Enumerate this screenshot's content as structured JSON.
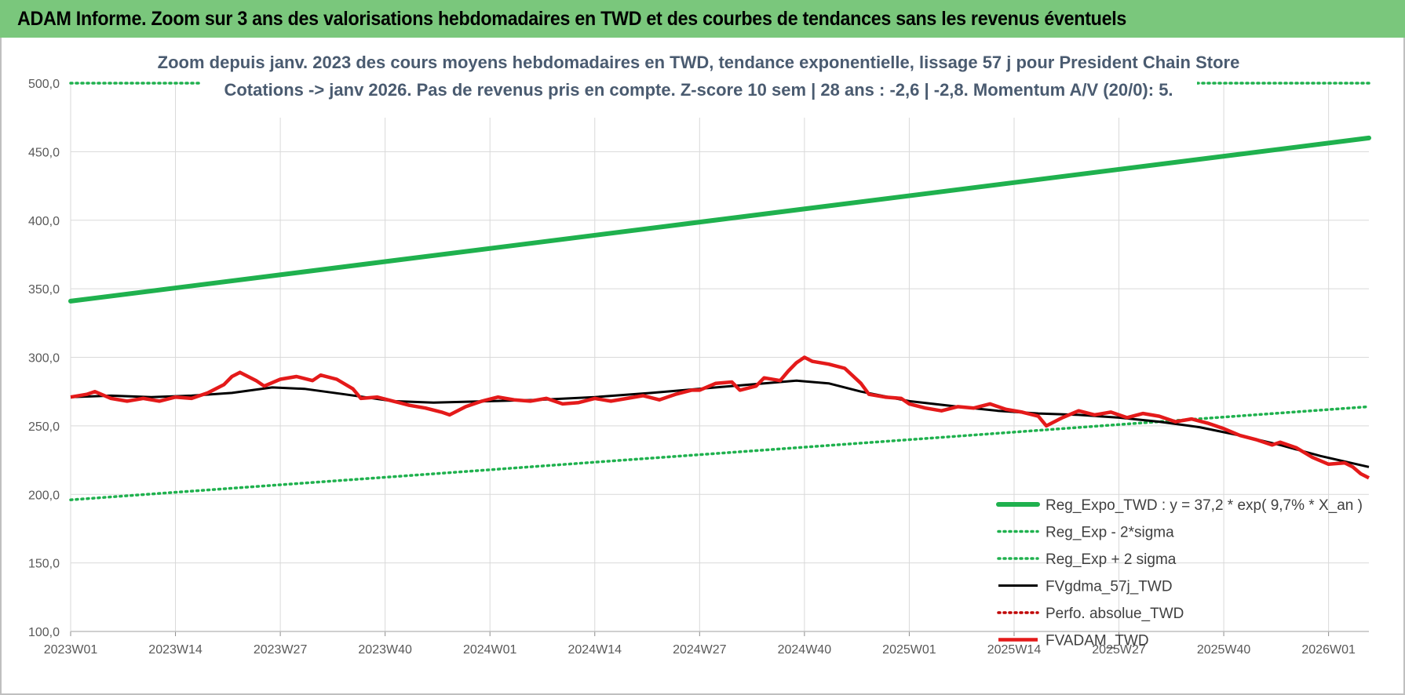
{
  "header": {
    "title": "ADAM Informe. Zoom sur 3 ans des valorisations hebdomadaires en TWD et des courbes de tendances sans les revenus éventuels"
  },
  "chart_data": {
    "type": "line",
    "title": "Zoom depuis janv. 2023 des cours moyens hebdomadaires en TWD, tendance exponentielle, lissage 57 j pour President Chain Store",
    "subtitle": "Cotations -> janv 2026. Pas de revenus pris en compte. Z-score 10 sem | 28 ans : -2,6 | -2,8. Momentum A/V (20/0): 5.",
    "xlabel": "",
    "ylabel": "",
    "ylim": [
      100,
      500
    ],
    "y_ticks": [
      "100,0",
      "150,0",
      "200,0",
      "250,0",
      "300,0",
      "350,0",
      "400,0",
      "450,0",
      "500,0"
    ],
    "y_tick_values": [
      100,
      150,
      200,
      250,
      300,
      350,
      400,
      450,
      500
    ],
    "x_ticks": [
      "2023W01",
      "2023W14",
      "2023W27",
      "2023W40",
      "2024W01",
      "2024W14",
      "2024W27",
      "2024W40",
      "2025W01",
      "2025W14",
      "2025W27",
      "2025W40",
      "2026W01"
    ],
    "x_tick_weeks": [
      0,
      13,
      26,
      39,
      52,
      65,
      78,
      91,
      104,
      117,
      130,
      143,
      156
    ],
    "x_max_week": 161,
    "grid": true,
    "legend_position": "bottom-right",
    "series": [
      {
        "name": "Reg_Expo_TWD : y = 37,2 * exp( 9,7% * X_an )",
        "style": "thick-solid",
        "color": "#1fb14e",
        "points": [
          [
            0,
            341
          ],
          [
            161,
            460
          ]
        ]
      },
      {
        "name": "Reg_Exp - 2*sigma",
        "style": "dotted",
        "color": "#1fb14e",
        "points": [
          [
            0,
            196
          ],
          [
            161,
            264
          ]
        ]
      },
      {
        "name": "Reg_Exp + 2 sigma",
        "style": "dotted",
        "color": "#1fb14e",
        "points": [
          [
            0,
            500
          ],
          [
            161,
            500
          ]
        ]
      },
      {
        "name": "FVgdma_57j_TWD",
        "style": "solid",
        "color": "#000000",
        "points": [
          [
            0,
            271
          ],
          [
            5,
            272
          ],
          [
            10,
            271
          ],
          [
            15,
            272
          ],
          [
            20,
            274
          ],
          [
            25,
            278
          ],
          [
            29,
            277
          ],
          [
            34,
            273
          ],
          [
            40,
            268
          ],
          [
            45,
            267
          ],
          [
            52,
            268
          ],
          [
            58,
            269
          ],
          [
            65,
            271
          ],
          [
            72,
            274
          ],
          [
            80,
            278
          ],
          [
            86,
            281
          ],
          [
            90,
            283
          ],
          [
            94,
            281
          ],
          [
            98,
            275
          ],
          [
            104,
            268
          ],
          [
            110,
            264
          ],
          [
            115,
            261
          ],
          [
            120,
            259
          ],
          [
            125,
            258
          ],
          [
            130,
            256
          ],
          [
            135,
            253
          ],
          [
            140,
            249
          ],
          [
            145,
            243
          ],
          [
            150,
            236
          ],
          [
            155,
            228
          ],
          [
            161,
            220
          ]
        ]
      },
      {
        "name": "Perfo. absolue_TWD",
        "style": "dotted",
        "color": "#c00000",
        "points": []
      },
      {
        "name": "FVADAM_TWD",
        "style": "solid",
        "color": "#e41a1a",
        "points": [
          [
            0,
            271
          ],
          [
            2,
            273
          ],
          [
            3,
            275
          ],
          [
            5,
            270
          ],
          [
            7,
            268
          ],
          [
            9,
            270
          ],
          [
            11,
            268
          ],
          [
            13,
            271
          ],
          [
            15,
            270
          ],
          [
            17,
            274
          ],
          [
            19,
            280
          ],
          [
            20,
            286
          ],
          [
            21,
            289
          ],
          [
            23,
            283
          ],
          [
            24,
            279
          ],
          [
            26,
            284
          ],
          [
            28,
            286
          ],
          [
            30,
            283
          ],
          [
            31,
            287
          ],
          [
            33,
            284
          ],
          [
            35,
            277
          ],
          [
            36,
            270
          ],
          [
            38,
            271
          ],
          [
            40,
            268
          ],
          [
            42,
            265
          ],
          [
            44,
            263
          ],
          [
            46,
            260
          ],
          [
            47,
            258
          ],
          [
            49,
            264
          ],
          [
            51,
            268
          ],
          [
            53,
            271
          ],
          [
            55,
            269
          ],
          [
            57,
            268
          ],
          [
            59,
            270
          ],
          [
            61,
            266
          ],
          [
            63,
            267
          ],
          [
            65,
            270
          ],
          [
            67,
            268
          ],
          [
            69,
            270
          ],
          [
            71,
            272
          ],
          [
            73,
            269
          ],
          [
            75,
            273
          ],
          [
            77,
            276
          ],
          [
            78,
            276
          ],
          [
            80,
            281
          ],
          [
            82,
            282
          ],
          [
            83,
            276
          ],
          [
            85,
            279
          ],
          [
            86,
            285
          ],
          [
            88,
            283
          ],
          [
            89,
            290
          ],
          [
            90,
            296
          ],
          [
            91,
            300
          ],
          [
            92,
            297
          ],
          [
            94,
            295
          ],
          [
            96,
            292
          ],
          [
            98,
            281
          ],
          [
            99,
            273
          ],
          [
            101,
            271
          ],
          [
            103,
            270
          ],
          [
            104,
            266
          ],
          [
            106,
            263
          ],
          [
            108,
            261
          ],
          [
            110,
            264
          ],
          [
            112,
            263
          ],
          [
            114,
            266
          ],
          [
            116,
            262
          ],
          [
            118,
            260
          ],
          [
            120,
            257
          ],
          [
            121,
            250
          ],
          [
            123,
            256
          ],
          [
            125,
            261
          ],
          [
            127,
            258
          ],
          [
            129,
            260
          ],
          [
            131,
            256
          ],
          [
            133,
            259
          ],
          [
            135,
            257
          ],
          [
            137,
            253
          ],
          [
            139,
            255
          ],
          [
            141,
            252
          ],
          [
            143,
            248
          ],
          [
            145,
            243
          ],
          [
            147,
            240
          ],
          [
            149,
            236
          ],
          [
            150,
            238
          ],
          [
            152,
            234
          ],
          [
            154,
            227
          ],
          [
            156,
            222
          ],
          [
            158,
            223
          ],
          [
            159,
            220
          ],
          [
            160,
            215
          ],
          [
            161,
            212
          ]
        ]
      }
    ]
  }
}
